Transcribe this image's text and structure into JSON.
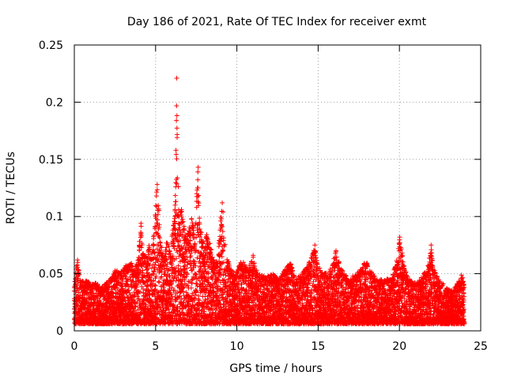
{
  "chart_data": {
    "type": "scatter",
    "title": "Day 186 of 2021, Rate Of TEC Index for receiver exmt",
    "xlabel": "GPS time / hours",
    "ylabel": "ROTI / TECUs",
    "xlim": [
      0,
      25
    ],
    "ylim": [
      0,
      0.25
    ],
    "xticks": [
      0,
      5,
      10,
      15,
      20,
      25
    ],
    "xtick_labels": [
      "0",
      "5",
      "10",
      "15",
      "20",
      "25"
    ],
    "yticks": [
      0,
      0.05,
      0.1,
      0.15,
      0.2,
      0.25
    ],
    "ytick_labels": [
      "0",
      "0.05",
      "0.1",
      "0.15",
      "0.2",
      "0.25"
    ],
    "grid": true,
    "marker": "+",
    "color": "#ff0000",
    "series": [
      {
        "name": "ROTI",
        "sampling_note": "dense 30-s samples from 0 to 24 h; upper envelope per time (hours, TECU) listed; points fill below envelope down to ~0.005",
        "envelope": [
          [
            0.0,
            0.038
          ],
          [
            0.1,
            0.055
          ],
          [
            0.2,
            0.062
          ],
          [
            0.35,
            0.048
          ],
          [
            0.6,
            0.042
          ],
          [
            0.8,
            0.045
          ],
          [
            1.0,
            0.04
          ],
          [
            1.3,
            0.043
          ],
          [
            1.6,
            0.038
          ],
          [
            1.9,
            0.041
          ],
          [
            2.2,
            0.045
          ],
          [
            2.4,
            0.05
          ],
          [
            2.6,
            0.055
          ],
          [
            2.9,
            0.052
          ],
          [
            3.2,
            0.058
          ],
          [
            3.5,
            0.06
          ],
          [
            3.7,
            0.055
          ],
          [
            3.9,
            0.062
          ],
          [
            4.0,
            0.078
          ],
          [
            4.1,
            0.094
          ],
          [
            4.2,
            0.07
          ],
          [
            4.45,
            0.065
          ],
          [
            4.6,
            0.075
          ],
          [
            4.75,
            0.07
          ],
          [
            4.9,
            0.088
          ],
          [
            5.0,
            0.11
          ],
          [
            5.05,
            0.12
          ],
          [
            5.1,
            0.128
          ],
          [
            5.2,
            0.108
          ],
          [
            5.3,
            0.08
          ],
          [
            5.5,
            0.065
          ],
          [
            5.7,
            0.083
          ],
          [
            5.9,
            0.068
          ],
          [
            6.1,
            0.095
          ],
          [
            6.2,
            0.11
          ],
          [
            6.28,
            0.184
          ],
          [
            6.3,
            0.22
          ],
          [
            6.35,
            0.126
          ],
          [
            6.45,
            0.098
          ],
          [
            6.6,
            0.11
          ],
          [
            6.75,
            0.092
          ],
          [
            6.9,
            0.08
          ],
          [
            7.2,
            0.1
          ],
          [
            7.4,
            0.088
          ],
          [
            7.55,
            0.125
          ],
          [
            7.6,
            0.143
          ],
          [
            7.7,
            0.1
          ],
          [
            7.85,
            0.085
          ],
          [
            8.0,
            0.075
          ],
          [
            8.2,
            0.09
          ],
          [
            8.5,
            0.065
          ],
          [
            8.8,
            0.06
          ],
          [
            9.0,
            0.098
          ],
          [
            9.1,
            0.112
          ],
          [
            9.2,
            0.08
          ],
          [
            9.4,
            0.07
          ],
          [
            9.6,
            0.055
          ],
          [
            9.9,
            0.05
          ],
          [
            10.3,
            0.062
          ],
          [
            10.7,
            0.055
          ],
          [
            11.0,
            0.067
          ],
          [
            11.3,
            0.05
          ],
          [
            11.8,
            0.047
          ],
          [
            12.2,
            0.05
          ],
          [
            12.6,
            0.045
          ],
          [
            13.0,
            0.055
          ],
          [
            13.3,
            0.06
          ],
          [
            13.6,
            0.045
          ],
          [
            14.0,
            0.05
          ],
          [
            14.4,
            0.058
          ],
          [
            14.7,
            0.07
          ],
          [
            14.8,
            0.075
          ],
          [
            15.0,
            0.06
          ],
          [
            15.4,
            0.05
          ],
          [
            15.8,
            0.055
          ],
          [
            16.0,
            0.065
          ],
          [
            16.1,
            0.07
          ],
          [
            16.4,
            0.055
          ],
          [
            16.9,
            0.045
          ],
          [
            17.3,
            0.05
          ],
          [
            17.7,
            0.055
          ],
          [
            17.9,
            0.062
          ],
          [
            18.2,
            0.055
          ],
          [
            18.6,
            0.045
          ],
          [
            19.0,
            0.046
          ],
          [
            19.5,
            0.045
          ],
          [
            19.9,
            0.065
          ],
          [
            20.0,
            0.082
          ],
          [
            20.1,
            0.075
          ],
          [
            20.3,
            0.055
          ],
          [
            20.6,
            0.045
          ],
          [
            21.0,
            0.042
          ],
          [
            21.5,
            0.05
          ],
          [
            21.8,
            0.06
          ],
          [
            21.95,
            0.075
          ],
          [
            22.1,
            0.055
          ],
          [
            22.4,
            0.045
          ],
          [
            22.8,
            0.04
          ],
          [
            23.2,
            0.035
          ],
          [
            23.6,
            0.042
          ],
          [
            23.85,
            0.05
          ],
          [
            24.0,
            0.04
          ]
        ],
        "outliers": [
          [
            6.3,
            0.221
          ],
          [
            6.28,
            0.184
          ],
          [
            7.62,
            0.143
          ],
          [
            7.6,
            0.139
          ],
          [
            5.1,
            0.128
          ],
          [
            6.4,
            0.126
          ],
          [
            7.58,
            0.125
          ],
          [
            5.05,
            0.118
          ],
          [
            9.1,
            0.112
          ],
          [
            6.2,
            0.11
          ],
          [
            9.15,
            0.104
          ],
          [
            4.1,
            0.094
          ],
          [
            20.02,
            0.082
          ],
          [
            14.8,
            0.075
          ],
          [
            21.95,
            0.075
          ],
          [
            16.1,
            0.07
          ],
          [
            11.0,
            0.066
          ],
          [
            0.2,
            0.062
          ]
        ]
      }
    ]
  }
}
